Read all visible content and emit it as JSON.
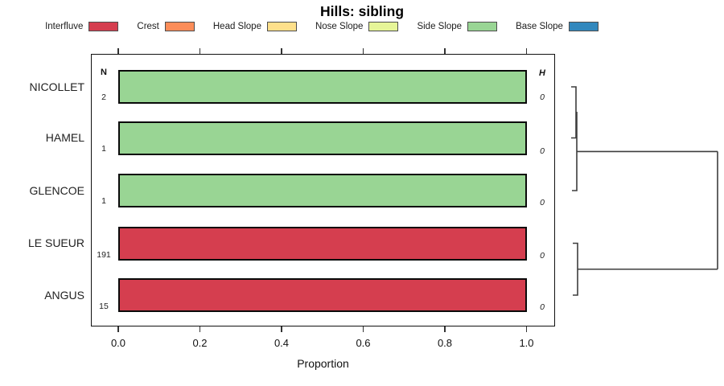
{
  "title": "Hills: sibling",
  "legend": {
    "items": [
      {
        "label": "Interfluve",
        "color": "#D53E4F"
      },
      {
        "label": "Crest",
        "color": "#FC8D59"
      },
      {
        "label": "Head Slope",
        "color": "#FEE08B"
      },
      {
        "label": "Nose Slope",
        "color": "#E6F598"
      },
      {
        "label": "Side Slope",
        "color": "#99D594"
      },
      {
        "label": "Base Slope",
        "color": "#3288BD"
      }
    ]
  },
  "columns": {
    "n_header": "N",
    "h_header": "H"
  },
  "chart_data": {
    "type": "bar",
    "subtype": "horizontal-stacked-proportion",
    "title": "Hills: sibling",
    "xlabel": "Proportion",
    "xlim": [
      0,
      1.04
    ],
    "x_ticks": [
      0.0,
      0.2,
      0.4,
      0.6,
      0.8,
      1.0
    ],
    "x_tick_labels": [
      "0.0",
      "0.2",
      "0.4",
      "0.6",
      "0.8",
      "1.0"
    ],
    "categories": [
      "NICOLLET",
      "HAMEL",
      "GLENCOE",
      "LE SUEUR",
      "ANGUS"
    ],
    "legend_classes": [
      "Interfluve",
      "Crest",
      "Head Slope",
      "Nose Slope",
      "Side Slope",
      "Base Slope"
    ],
    "rows": [
      {
        "name": "NICOLLET",
        "n": "2",
        "h": "0",
        "class": "Side Slope",
        "proportion": 1.0,
        "color": "#99D594"
      },
      {
        "name": "HAMEL",
        "n": "1",
        "h": "0",
        "class": "Side Slope",
        "proportion": 1.0,
        "color": "#99D594"
      },
      {
        "name": "GLENCOE",
        "n": "1",
        "h": "0",
        "class": "Side Slope",
        "proportion": 1.0,
        "color": "#99D594"
      },
      {
        "name": "LE SUEUR",
        "n": "191",
        "h": "0",
        "class": "Interfluve",
        "proportion": 1.0,
        "color": "#D53E4F"
      },
      {
        "name": "ANGUS",
        "n": "15",
        "h": "0",
        "class": "Interfluve",
        "proportion": 1.0,
        "color": "#D53E4F"
      }
    ],
    "dendrogram": {
      "position": "right",
      "merges": [
        {
          "members": [
            "NICOLLET",
            "HAMEL"
          ],
          "height": 0
        },
        {
          "members": [
            "NICOLLET+HAMEL",
            "GLENCOE"
          ],
          "height": 0
        },
        {
          "members": [
            "LE SUEUR",
            "ANGUS"
          ],
          "height": 0
        },
        {
          "members": [
            "NICOLLET+HAMEL+GLENCOE",
            "LE SUEUR+ANGUS"
          ],
          "height": "max"
        }
      ]
    },
    "legend_position": "top",
    "grid": false
  }
}
